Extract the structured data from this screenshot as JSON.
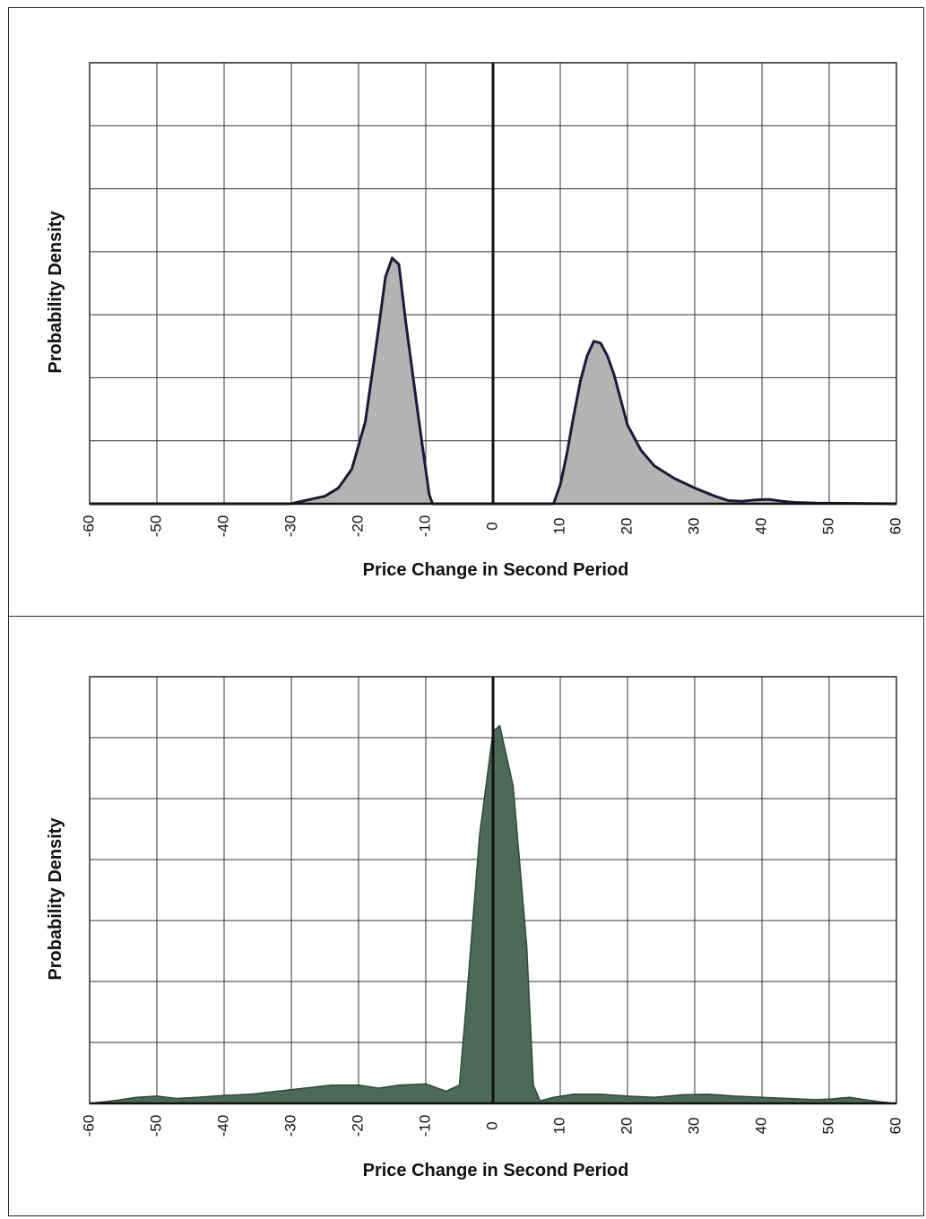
{
  "chart_data": [
    {
      "type": "area",
      "xlabel": "Price Change in Second Period",
      "ylabel": "Probability Density",
      "xlim": [
        -60,
        60
      ],
      "xticks": [
        "-60",
        "-50",
        "-40",
        "-30",
        "-20",
        "-10",
        "0",
        "10",
        "20",
        "30",
        "40",
        "50",
        "60"
      ],
      "ylim": [
        0,
        7
      ],
      "yticks_shown": false,
      "grid": true,
      "fill_color": "#b3b3b3",
      "line_color": "#1a1a3a",
      "vertical_line_at": 0,
      "series": [
        {
          "x": [
            -60,
            -30,
            -28,
            -25,
            -23,
            -21,
            -19,
            -17,
            -16,
            -15,
            -14,
            -13,
            -11,
            -9.5,
            -9,
            9,
            10,
            11,
            12,
            13,
            14,
            15,
            16,
            17,
            18,
            19,
            20,
            22,
            24,
            27,
            30,
            33,
            35,
            37,
            39,
            41,
            43,
            45,
            48,
            60
          ],
          "y": [
            0,
            0,
            0.05,
            0.12,
            0.25,
            0.55,
            1.3,
            2.8,
            3.6,
            3.9,
            3.8,
            2.9,
            1.3,
            0.15,
            0,
            0,
            0.3,
            0.8,
            1.4,
            1.95,
            2.35,
            2.58,
            2.55,
            2.35,
            2.05,
            1.65,
            1.25,
            0.85,
            0.6,
            0.4,
            0.25,
            0.12,
            0.05,
            0.04,
            0.06,
            0.07,
            0.04,
            0.02,
            0.01,
            0
          ]
        }
      ]
    },
    {
      "type": "area",
      "xlabel": "Price Change in Second Period",
      "ylabel": "Probability Density",
      "xlim": [
        -60,
        60
      ],
      "xticks": [
        "-60",
        "-50",
        "-40",
        "-30",
        "-20",
        "-10",
        "0",
        "10",
        "20",
        "30",
        "40",
        "50",
        "60"
      ],
      "ylim": [
        0,
        7
      ],
      "yticks_shown": false,
      "grid": true,
      "fill_color": "#4c6a55",
      "line_color": "#2f4a38",
      "vertical_line_at": 0,
      "series": [
        {
          "x": [
            -60,
            -56,
            -53,
            -50,
            -47,
            -44,
            -40,
            -36,
            -32,
            -28,
            -24,
            -20,
            -17,
            -14,
            -10,
            -7,
            -5,
            -4,
            -2,
            0,
            1,
            3,
            5,
            6,
            7,
            9,
            12,
            16,
            20,
            24,
            28,
            32,
            36,
            40,
            44,
            48,
            50,
            53,
            56,
            58,
            60
          ],
          "y": [
            0,
            0.05,
            0.1,
            0.12,
            0.08,
            0.1,
            0.13,
            0.15,
            0.2,
            0.25,
            0.3,
            0.3,
            0.25,
            0.3,
            0.32,
            0.2,
            0.3,
            1.6,
            4.4,
            6.1,
            6.2,
            5.2,
            2.6,
            0.3,
            0.04,
            0.1,
            0.15,
            0.15,
            0.12,
            0.1,
            0.14,
            0.15,
            0.12,
            0.1,
            0.08,
            0.06,
            0.07,
            0.1,
            0.05,
            0.02,
            0
          ]
        }
      ]
    }
  ]
}
